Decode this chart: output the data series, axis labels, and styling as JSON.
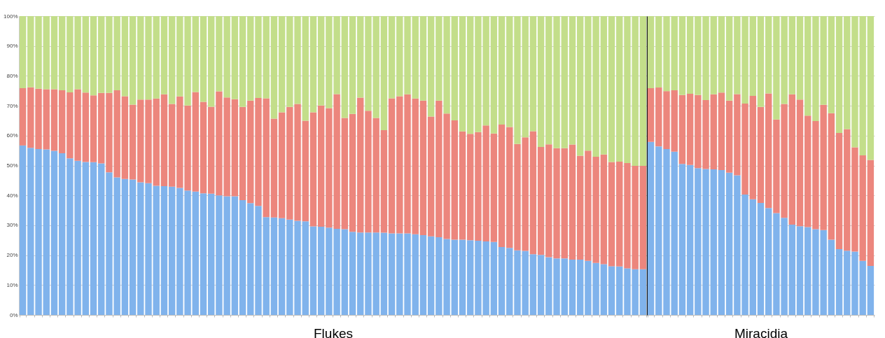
{
  "chart_data": [
    {
      "type": "bar",
      "stacked": true,
      "xlabel": "Flukes",
      "tick_labels": "y",
      "grid": "y",
      "ylim": [
        0,
        100
      ],
      "yticks": [
        {
          "value": 0,
          "label": "0%"
        },
        {
          "value": 10,
          "label": "10%"
        },
        {
          "value": 20,
          "label": "20%"
        },
        {
          "value": 30,
          "label": "30%"
        },
        {
          "value": 40,
          "label": "40%"
        },
        {
          "value": 50,
          "label": "50%"
        },
        {
          "value": 60,
          "label": "60%"
        },
        {
          "value": 70,
          "label": "70%"
        },
        {
          "value": 80,
          "label": "80%"
        },
        {
          "value": 90,
          "label": "90%"
        },
        {
          "value": 100,
          "label": "100%"
        }
      ],
      "categories": [
        null,
        null,
        null,
        null,
        null,
        null,
        null,
        null,
        null,
        null,
        null,
        null,
        null,
        null,
        null,
        null,
        null,
        null,
        null,
        null,
        null,
        null,
        null,
        null,
        null,
        null,
        null,
        null,
        null,
        null,
        null,
        null,
        null,
        null,
        null,
        null,
        null,
        null,
        null,
        null,
        null,
        null,
        null,
        null,
        null,
        null,
        null,
        null,
        null,
        null,
        null,
        null,
        null,
        null,
        null,
        null,
        null,
        null,
        null,
        null,
        null,
        null,
        null,
        null,
        null,
        null,
        null,
        null,
        null,
        null,
        null,
        null,
        null,
        null,
        null,
        null,
        null,
        null,
        null,
        null
      ],
      "series": [
        {
          "color": "#80b3ec",
          "values": [
            56.7,
            55.9,
            55.5,
            55.4,
            54.9,
            54.1,
            52.4,
            51.6,
            51.2,
            51.1,
            50.7,
            47.7,
            46.0,
            45.5,
            45.3,
            44.4,
            44.1,
            43.2,
            43.1,
            42.9,
            42.5,
            41.6,
            41.3,
            40.7,
            40.6,
            40.0,
            39.7,
            39.7,
            38.4,
            37.4,
            36.5,
            32.7,
            32.6,
            32.4,
            31.9,
            31.5,
            31.3,
            29.6,
            29.5,
            29.2,
            28.8,
            28.7,
            27.8,
            27.6,
            27.6,
            27.6,
            27.5,
            27.3,
            27.3,
            27.3,
            27.0,
            26.7,
            26.3,
            26.0,
            25.4,
            25.2,
            25.2,
            25.0,
            24.8,
            24.6,
            24.4,
            22.7,
            22.4,
            21.6,
            21.4,
            20.3,
            20.1,
            19.3,
            18.9,
            18.9,
            18.5,
            18.5,
            18.1,
            17.4,
            17.0,
            16.3,
            16.2,
            15.6,
            15.3,
            15.3
          ]
        },
        {
          "color": "#ec867d",
          "values": [
            19.2,
            20.3,
            20.2,
            20.1,
            20.6,
            21.1,
            22.1,
            23.9,
            23.2,
            22.4,
            23.6,
            26.6,
            29.2,
            27.7,
            25.1,
            27.7,
            28.0,
            29.2,
            30.7,
            27.7,
            30.6,
            28.5,
            33.3,
            30.6,
            29.1,
            34.8,
            33.1,
            32.5,
            31.2,
            34.3,
            36.1,
            39.8,
            33.1,
            35.4,
            37.7,
            39.1,
            33.7,
            38.2,
            40.6,
            40.0,
            45.1,
            37.2,
            39.5,
            45.1,
            40.7,
            38.3,
            34.3,
            45.2,
            45.9,
            46.5,
            45.4,
            45.0,
            40.1,
            45.7,
            42.0,
            39.9,
            36.2,
            35.6,
            36.4,
            38.8,
            36.3,
            41.0,
            40.5,
            35.6,
            38.0,
            41.2,
            36.1,
            37.8,
            36.9,
            36.9,
            38.5,
            34.8,
            36.9,
            35.5,
            36.7,
            34.9,
            35.1,
            35.2,
            34.6,
            34.6
          ]
        },
        {
          "color": "#c3de8a",
          "values": [
            24.1,
            23.8,
            24.3,
            24.5,
            24.5,
            24.8,
            25.5,
            24.5,
            25.6,
            26.5,
            25.7,
            25.7,
            24.8,
            26.8,
            29.6,
            27.9,
            27.9,
            27.6,
            26.2,
            29.4,
            26.9,
            29.9,
            25.4,
            28.7,
            30.3,
            25.2,
            27.2,
            27.8,
            30.4,
            28.3,
            27.4,
            27.5,
            34.3,
            32.2,
            30.4,
            29.4,
            35.0,
            32.2,
            29.9,
            30.8,
            26.1,
            34.1,
            32.7,
            27.3,
            31.7,
            34.1,
            38.2,
            27.5,
            26.8,
            26.2,
            27.6,
            28.3,
            33.6,
            28.3,
            32.6,
            34.9,
            38.6,
            39.4,
            38.8,
            36.6,
            39.3,
            36.3,
            37.1,
            42.8,
            40.6,
            38.5,
            43.8,
            42.9,
            44.2,
            44.2,
            43.0,
            46.7,
            45.0,
            47.1,
            46.3,
            48.8,
            48.7,
            49.2,
            50.1,
            50.1
          ]
        }
      ]
    },
    {
      "type": "bar",
      "stacked": true,
      "xlabel": "Miracidia",
      "tick_labels": false,
      "grid": "y",
      "ylim": [
        0,
        100
      ],
      "yticks": [
        {
          "value": 0,
          "label": null
        },
        {
          "value": 10,
          "label": null
        },
        {
          "value": 20,
          "label": null
        },
        {
          "value": 30,
          "label": null
        },
        {
          "value": 40,
          "label": null
        },
        {
          "value": 50,
          "label": null
        },
        {
          "value": 60,
          "label": null
        },
        {
          "value": 70,
          "label": null
        },
        {
          "value": 80,
          "label": null
        },
        {
          "value": 90,
          "label": null
        },
        {
          "value": 100,
          "label": null
        }
      ],
      "categories": [
        null,
        null,
        null,
        null,
        null,
        null,
        null,
        null,
        null,
        null,
        null,
        null,
        null,
        null,
        null,
        null,
        null,
        null,
        null,
        null,
        null,
        null,
        null,
        null,
        null,
        null,
        null,
        null,
        null
      ],
      "series": [
        {
          "color": "#80b3ec",
          "values": [
            57.9,
            56.4,
            55.5,
            54.6,
            50.5,
            50.2,
            49.1,
            48.8,
            48.7,
            48.5,
            47.6,
            46.7,
            40.3,
            38.7,
            37.5,
            35.8,
            34.1,
            32.5,
            30.2,
            29.7,
            29.4,
            28.7,
            28.4,
            25.2,
            22.0,
            21.5,
            21.2,
            18.1,
            16.4
          ]
        },
        {
          "color": "#ec867d",
          "values": [
            18.0,
            19.7,
            19.4,
            20.6,
            23.1,
            23.8,
            24.5,
            23.1,
            25.1,
            25.9,
            24.1,
            27.2,
            30.4,
            34.6,
            32.1,
            38.3,
            31.3,
            38.1,
            43.6,
            42.4,
            37.3,
            36.2,
            41.9,
            42.3,
            38.9,
            40.7,
            34.9,
            35.3,
            35.5
          ]
        },
        {
          "color": "#c3de8a",
          "values": [
            24.1,
            23.9,
            25.1,
            24.8,
            26.4,
            26.0,
            26.4,
            28.1,
            26.2,
            25.6,
            28.3,
            26.1,
            29.3,
            26.7,
            30.4,
            25.9,
            34.6,
            29.4,
            26.2,
            27.9,
            33.3,
            35.1,
            29.7,
            32.5,
            39.1,
            37.8,
            43.9,
            46.6,
            48.1
          ]
        }
      ]
    }
  ]
}
